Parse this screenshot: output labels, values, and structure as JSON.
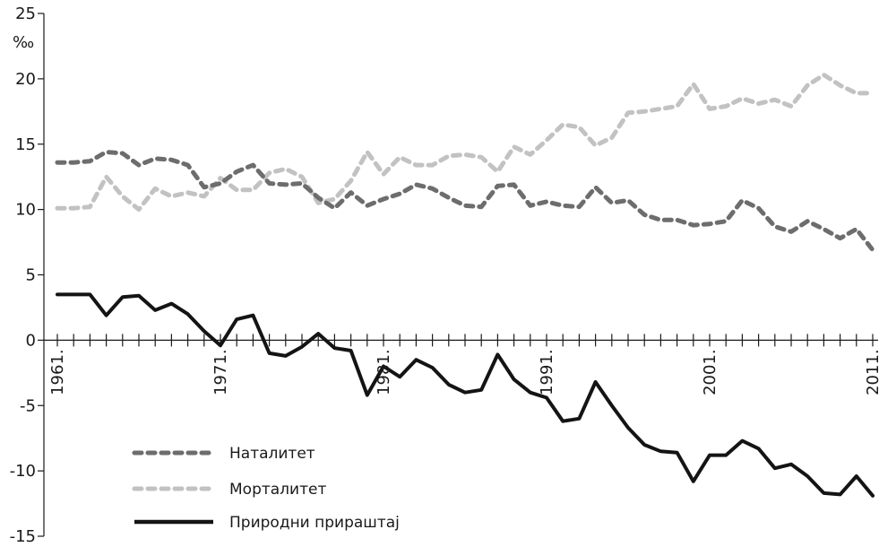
{
  "chart_data": {
    "type": "line",
    "title": "",
    "xlabel": "",
    "ylabel": "‰",
    "ylim": [
      -15,
      25
    ],
    "yticks": [
      "25",
      "20",
      "15",
      "10",
      "5",
      "0",
      "-5",
      "-10",
      "-15"
    ],
    "ytick_values": [
      25,
      20,
      15,
      10,
      5,
      0,
      -5,
      -10,
      -15
    ],
    "xticks": [
      "1961.",
      "1971.",
      "1981.",
      "1991.",
      "2001.",
      "2011."
    ],
    "xtick_values": [
      1961,
      1971,
      1981,
      1991,
      2001,
      2011
    ],
    "x": [
      1961,
      1962,
      1963,
      1964,
      1965,
      1966,
      1967,
      1968,
      1969,
      1970,
      1971,
      1972,
      1973,
      1974,
      1975,
      1976,
      1977,
      1978,
      1979,
      1980,
      1981,
      1982,
      1983,
      1984,
      1985,
      1986,
      1987,
      1988,
      1989,
      1990,
      1991,
      1992,
      1993,
      1994,
      1995,
      1996,
      1997,
      1998,
      1999,
      2000,
      2001,
      2002,
      2003,
      2004,
      2005,
      2006,
      2007,
      2008,
      2009,
      2010,
      2011
    ],
    "legend_placement": "bottom-left",
    "grid": false,
    "series": [
      {
        "name": "Наталитет",
        "color": "#6d6d6d",
        "style": "dashed",
        "values": [
          13.6,
          13.6,
          13.7,
          14.4,
          14.3,
          13.4,
          13.9,
          13.8,
          13.4,
          11.7,
          12.0,
          12.9,
          13.4,
          12.0,
          11.9,
          12.0,
          10.9,
          10.1,
          11.3,
          10.3,
          10.8,
          11.2,
          11.9,
          11.6,
          10.9,
          10.3,
          10.2,
          11.8,
          11.9,
          10.3,
          10.6,
          10.3,
          10.2,
          11.7,
          10.5,
          10.7,
          9.6,
          9.2,
          9.2,
          8.8,
          8.9,
          9.1,
          10.7,
          10.1,
          8.7,
          8.3,
          9.1,
          8.5,
          7.8,
          8.5,
          6.9
        ]
      },
      {
        "name": "Морталитет",
        "color": "#c2c2c2",
        "style": "dashed",
        "values": [
          10.1,
          10.1,
          10.2,
          12.5,
          11.0,
          10.0,
          11.6,
          11.0,
          11.3,
          11.0,
          12.4,
          11.5,
          11.5,
          12.8,
          13.1,
          12.5,
          10.5,
          10.8,
          12.2,
          14.4,
          12.7,
          14.0,
          13.4,
          13.4,
          14.1,
          14.2,
          14.0,
          12.9,
          14.8,
          14.2,
          15.3,
          16.5,
          16.3,
          14.9,
          15.5,
          17.4,
          17.5,
          17.7,
          17.9,
          19.6,
          17.7,
          17.9,
          18.5,
          18.1,
          18.4,
          17.9,
          19.5,
          20.3,
          19.5,
          18.9,
          18.9
        ]
      },
      {
        "name": "Природни прираштај",
        "color": "#141414",
        "style": "solid",
        "values": [
          3.5,
          3.5,
          3.5,
          1.9,
          3.3,
          3.4,
          2.3,
          2.8,
          2.0,
          0.7,
          -0.4,
          1.6,
          1.9,
          -1.0,
          -1.2,
          -0.5,
          0.5,
          -0.6,
          -0.8,
          -4.2,
          -2.0,
          -2.8,
          -1.5,
          -2.1,
          -3.4,
          -4.0,
          -3.8,
          -1.1,
          -3.0,
          -4.0,
          -4.4,
          -6.2,
          -6.0,
          -3.2,
          -5.0,
          -6.7,
          -8.0,
          -8.5,
          -8.6,
          -10.8,
          -8.8,
          -8.8,
          -7.7,
          -8.3,
          -9.8,
          -9.5,
          -10.4,
          -11.7,
          -11.8,
          -10.4,
          -11.9
        ]
      }
    ]
  }
}
